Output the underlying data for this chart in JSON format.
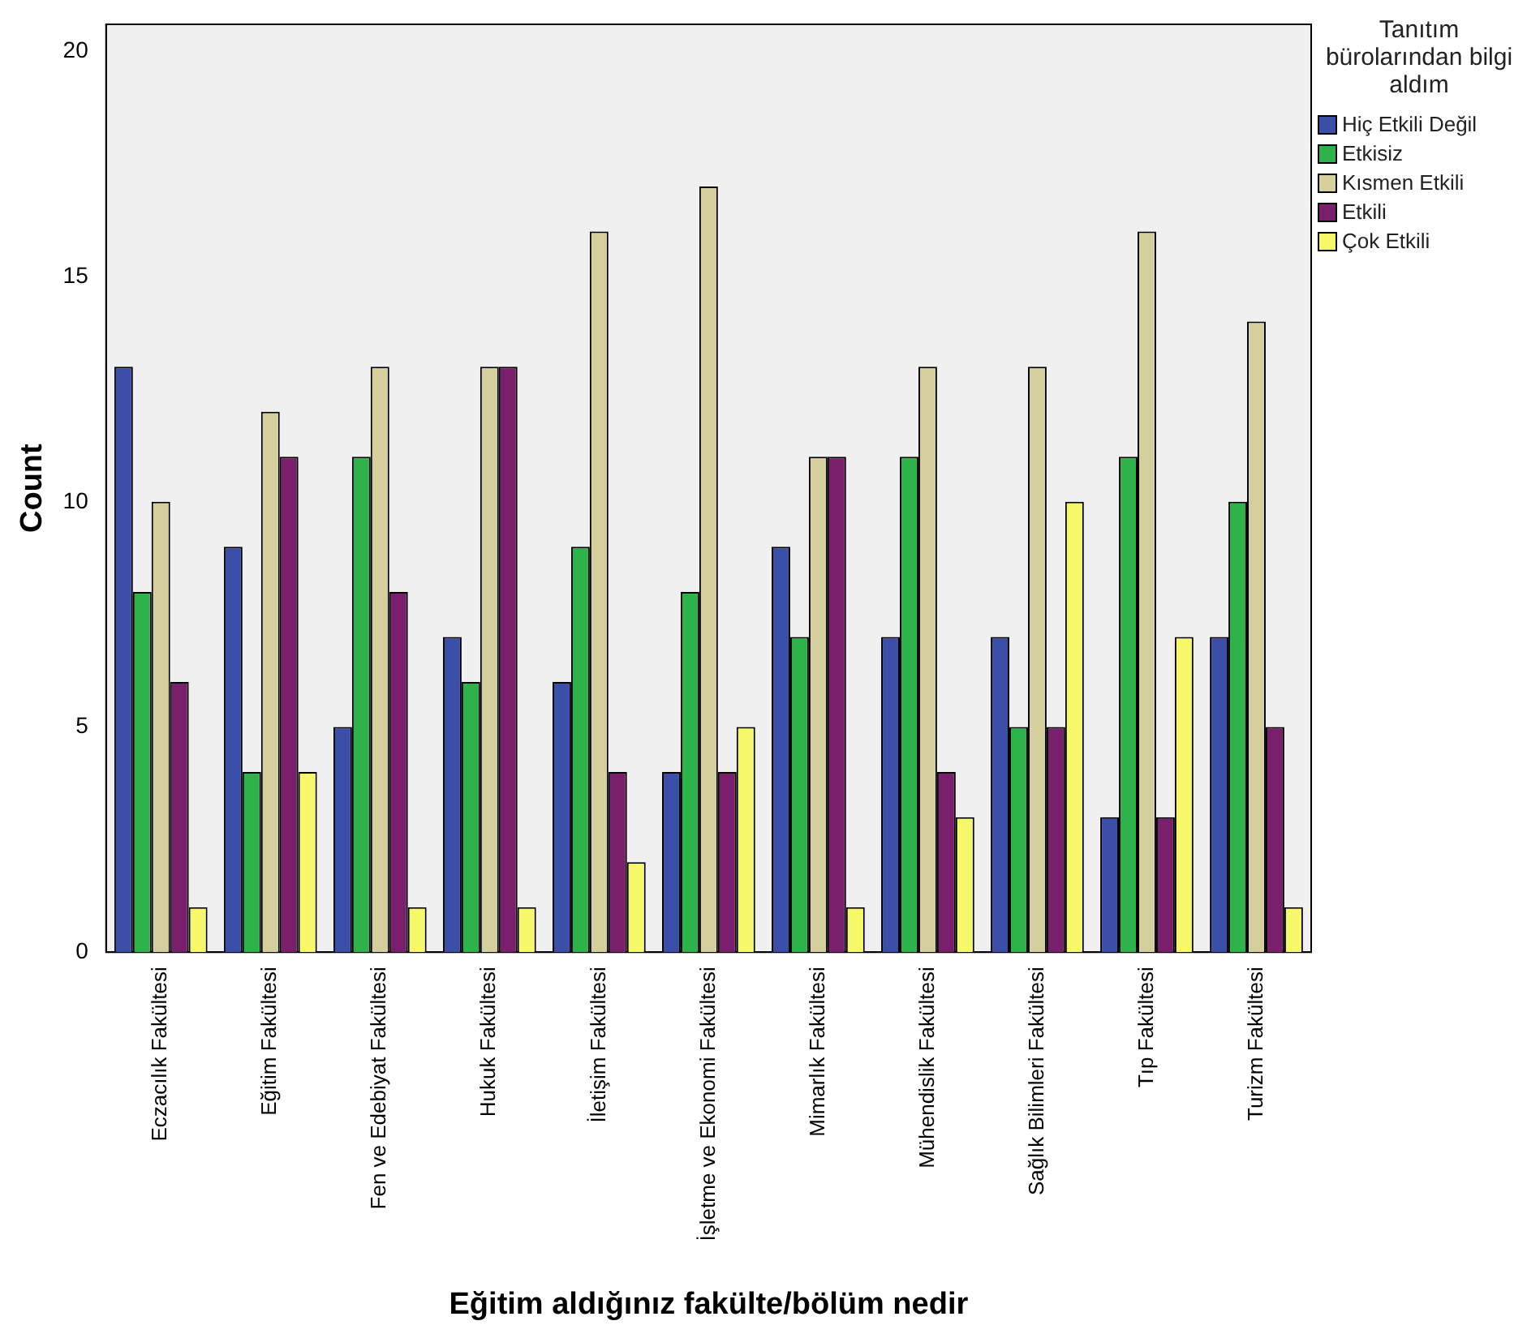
{
  "chart_data": {
    "type": "bar",
    "xlabel": "Eğitim aldığınız fakülte/bölüm nedir",
    "ylabel": "Count",
    "legend_title": "Tanıtım bürolarından bilgi aldım",
    "legend": "right",
    "categories": [
      "Eczacılık Fakültesi",
      "Eğitim Fakültesi",
      "Fen ve Edebiyat Fakültesi",
      "Hukuk Fakültesi",
      "İletişim Fakültesi",
      "İşletme ve Ekonomi Fakültesi",
      "Mimarlık Fakültesi",
      "Mühendislik Fakültesi",
      "Sağlık Bilimleri Fakültesi",
      "Tıp Fakültesi",
      "Turizm Fakültesi"
    ],
    "series": [
      {
        "name": "Hiç Etkili Değil",
        "color": "#3b4fa8",
        "values": [
          13,
          9,
          5,
          7,
          6,
          4,
          9,
          7,
          7,
          3,
          7
        ]
      },
      {
        "name": "Etkisiz",
        "color": "#2eb34a",
        "values": [
          8,
          4,
          11,
          6,
          9,
          8,
          7,
          11,
          5,
          11,
          10
        ]
      },
      {
        "name": "Kısmen Etkili",
        "color": "#d5cf9d",
        "values": [
          10,
          12,
          13,
          13,
          16,
          17,
          11,
          13,
          13,
          16,
          14
        ]
      },
      {
        "name": "Etkili",
        "color": "#7a1f6c",
        "values": [
          6,
          11,
          8,
          13,
          4,
          4,
          11,
          4,
          5,
          3,
          5
        ]
      },
      {
        "name": "Çok Etkili",
        "color": "#f7f76a",
        "values": [
          1,
          4,
          1,
          1,
          2,
          5,
          1,
          3,
          10,
          7,
          1
        ]
      }
    ],
    "ylim": [
      0,
      20.6
    ],
    "yticks": [
      0,
      5,
      10,
      15,
      20
    ],
    "grid": false
  }
}
